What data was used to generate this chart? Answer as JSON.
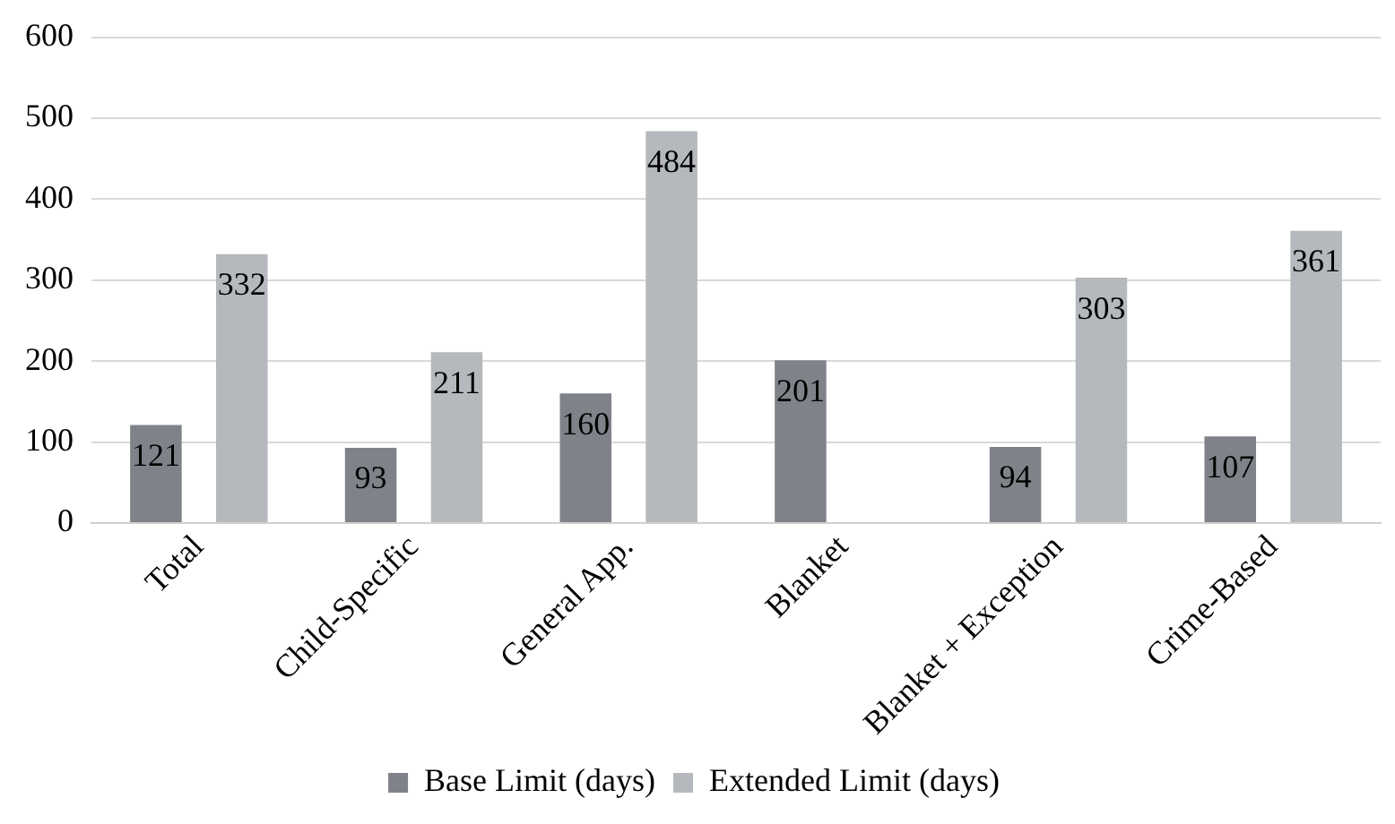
{
  "chart_data": {
    "type": "bar",
    "categories": [
      "Total",
      "Child-Specific",
      "General App.",
      "Blanket",
      "Blanket + Exception",
      "Crime-Based"
    ],
    "series": [
      {
        "name": "Base Limit (days)",
        "color": "#7f8389",
        "values": [
          121,
          93,
          160,
          201,
          94,
          107
        ]
      },
      {
        "name": "Extended Limit (days)",
        "color": "#b5b8bc",
        "values": [
          332,
          211,
          484,
          null,
          303,
          361
        ]
      }
    ],
    "ylim": [
      0,
      600
    ],
    "yticks": [
      0,
      100,
      200,
      300,
      400,
      500,
      600
    ],
    "grid": "y",
    "legend": "bottom",
    "data_labels": true
  }
}
